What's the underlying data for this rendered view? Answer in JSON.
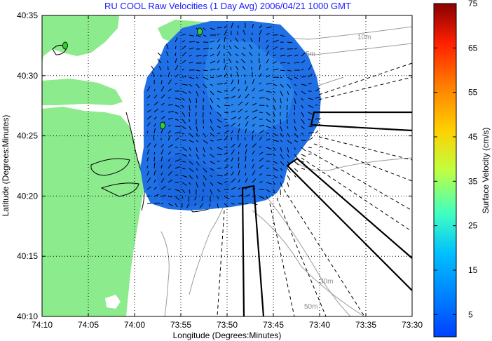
{
  "title": "RU COOL Raw Velocities (1 Day Avg) 2006/04/21 1000 GMT",
  "xlabel": "Longitude (Degrees:Minutes)",
  "ylabel": "Latitude (Degrees:Minutes)",
  "colorbar": {
    "label": "Surface Velocity (cm/s)",
    "min": 0,
    "max": 75,
    "ticks": [
      "5",
      "15",
      "25",
      "35",
      "45",
      "55",
      "65",
      "75"
    ],
    "tick_values": [
      5,
      15,
      25,
      35,
      45,
      55,
      65,
      75
    ],
    "colormap": "jet"
  },
  "map": {
    "lon_ticks": [
      "74:10",
      "74:05",
      "74:00",
      "73:55",
      "73:50",
      "73:45",
      "73:40",
      "73:35",
      "73:30"
    ],
    "lat_ticks": [
      "40:35",
      "40:30",
      "40:25",
      "40:20",
      "40:15",
      "40:10"
    ],
    "lon_range_deg": [
      -74.1667,
      -73.5
    ],
    "lat_range_deg": [
      40.1667,
      40.5833
    ],
    "grid": "dotted",
    "land_color": "#8ceb8c",
    "contours": [
      "5m",
      "10m",
      "20m",
      "30m",
      "50m"
    ]
  },
  "colors": {
    "title": "#1a1aff",
    "field_main": "#1f6fe6",
    "field_light": "#2f8ff0",
    "land": "#8ceb8c",
    "contour": "#9a9a9a",
    "station": "#33cc33"
  }
}
